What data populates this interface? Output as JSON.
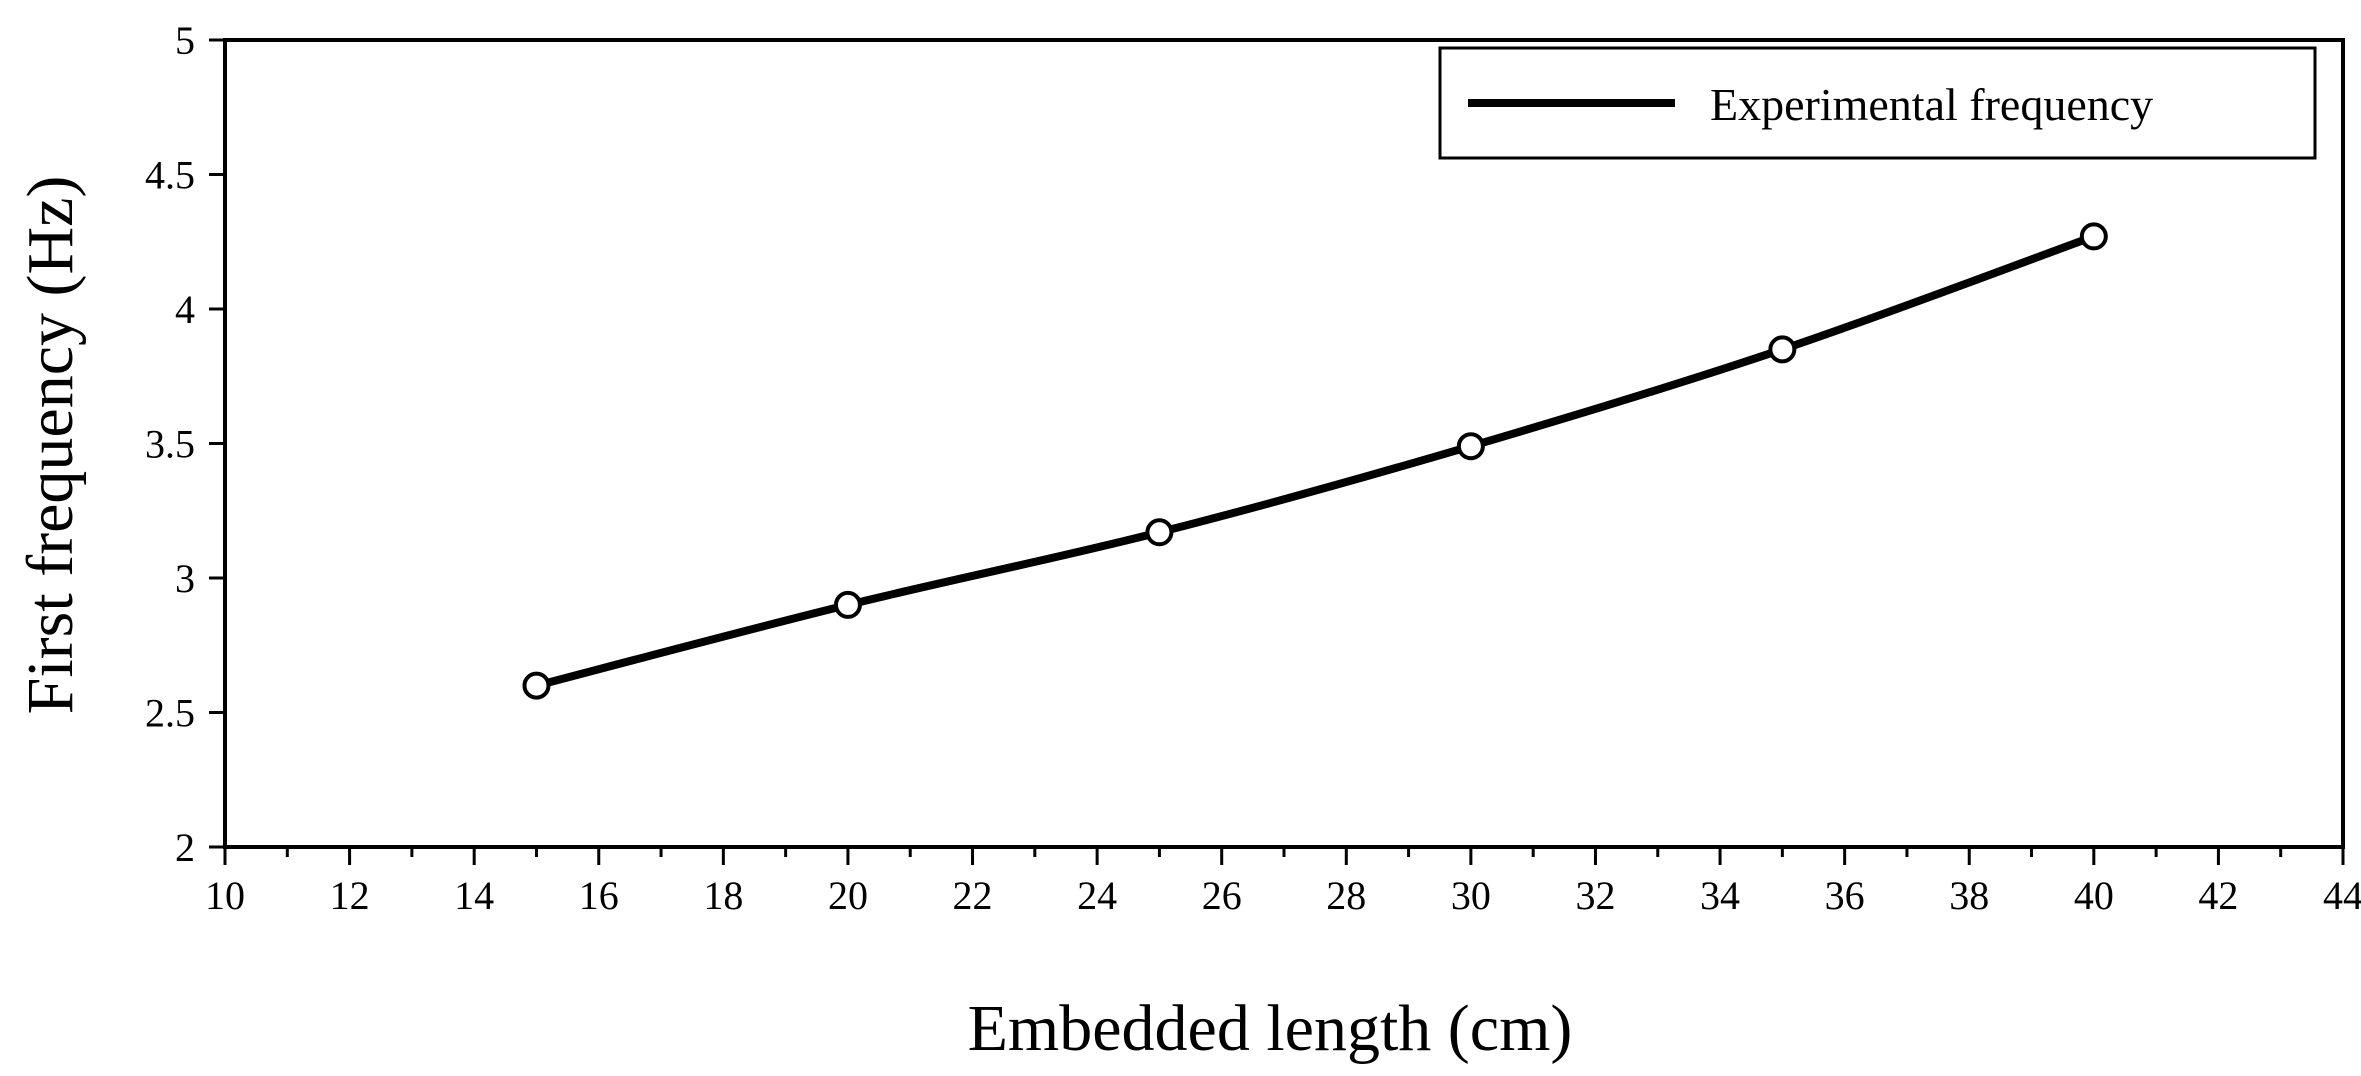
{
  "chart_data": {
    "type": "line",
    "title": "",
    "xlabel": "Embedded length (cm)",
    "ylabel": "First frequency (Hz)",
    "xlim": [
      10,
      44
    ],
    "ylim": [
      2,
      5
    ],
    "x_ticks": [
      "10",
      "12",
      "14",
      "16",
      "18",
      "20",
      "22",
      "24",
      "26",
      "28",
      "30",
      "32",
      "34",
      "36",
      "38",
      "40",
      "42",
      "44"
    ],
    "y_ticks": [
      "2",
      "2.5",
      "3",
      "3.5",
      "4",
      "4.5",
      "5"
    ],
    "grid": false,
    "legend": {
      "position": "top-right"
    },
    "series": [
      {
        "name": "Experimental frequency",
        "color": "#000000",
        "marker": "open-circle",
        "smooth": true,
        "x": [
          15,
          20,
          25,
          30,
          35,
          40
        ],
        "y": [
          2.6,
          2.9,
          3.17,
          3.49,
          3.85,
          4.27
        ]
      }
    ]
  }
}
